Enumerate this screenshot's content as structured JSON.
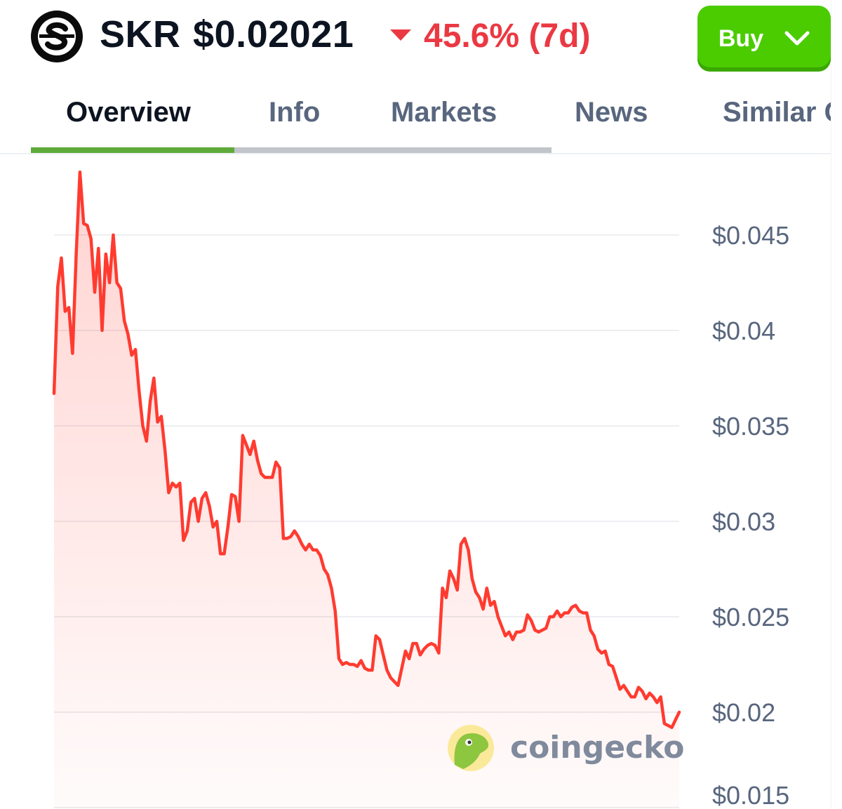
{
  "coin": {
    "symbol": "SKR",
    "price": "$0.02021",
    "change": "45.6% (7d)",
    "change_direction": "down",
    "logo_icon": "s-letter-logo-icon"
  },
  "buy_button": {
    "label": "Buy",
    "icon": "chevron-down-icon"
  },
  "tabs": [
    {
      "label": "Overview",
      "active": true
    },
    {
      "label": "Info",
      "active": false
    },
    {
      "label": "Markets",
      "active": false
    },
    {
      "label": "News",
      "active": false
    },
    {
      "label": "Similar Coins",
      "active": false
    }
  ],
  "colors": {
    "line": "#ff3b30",
    "up_green": "#4bcc00",
    "down_red": "#ea3943",
    "tab_active": "#5eab3b"
  },
  "watermark": "coingecko",
  "chart_data": {
    "type": "area",
    "period": "7d",
    "yticks": [
      "$0.015",
      "$0.02",
      "$0.025",
      "$0.03",
      "$0.035",
      "$0.04",
      "$0.045"
    ],
    "ytick_values": [
      0.015,
      0.02,
      0.025,
      0.03,
      0.035,
      0.04,
      0.045
    ],
    "ylim": [
      0.015,
      0.0486
    ],
    "grid": true,
    "series": [
      {
        "values": [
          0.0367,
          0.0423,
          0.0438,
          0.041,
          0.0412,
          0.0388,
          0.044,
          0.0483,
          0.0456,
          0.0455,
          0.0448,
          0.042,
          0.0443,
          0.04,
          0.044,
          0.0425,
          0.045,
          0.0425,
          0.0422,
          0.0405,
          0.0398,
          0.0387,
          0.039,
          0.0368,
          0.035,
          0.0342,
          0.0363,
          0.0375,
          0.0352,
          0.0355,
          0.0337,
          0.0315,
          0.032,
          0.0318,
          0.032,
          0.029,
          0.0295,
          0.031,
          0.0312,
          0.03,
          0.0312,
          0.0315,
          0.0308,
          0.0297,
          0.03,
          0.0283,
          0.0283,
          0.0297,
          0.0314,
          0.0313,
          0.03,
          0.0345,
          0.034,
          0.0335,
          0.0342,
          0.0332,
          0.0325,
          0.0323,
          0.0323,
          0.0323,
          0.0331,
          0.0328,
          0.0291,
          0.0291,
          0.0292,
          0.0295,
          0.0292,
          0.0288,
          0.0285,
          0.0288,
          0.0285,
          0.0285,
          0.0282,
          0.0275,
          0.0272,
          0.0265,
          0.0253,
          0.0228,
          0.0225,
          0.0226,
          0.0225,
          0.0225,
          0.0224,
          0.0227,
          0.0223,
          0.0222,
          0.0222,
          0.024,
          0.0238,
          0.023,
          0.0222,
          0.0218,
          0.0216,
          0.0214,
          0.0223,
          0.0232,
          0.0228,
          0.0236,
          0.0236,
          0.023,
          0.0233,
          0.0235,
          0.0236,
          0.0235,
          0.0231,
          0.0265,
          0.026,
          0.0274,
          0.027,
          0.0264,
          0.0288,
          0.0291,
          0.0285,
          0.027,
          0.0263,
          0.026,
          0.0254,
          0.0265,
          0.0256,
          0.0258,
          0.025,
          0.0245,
          0.024,
          0.0242,
          0.0238,
          0.0242,
          0.0242,
          0.0243,
          0.0251,
          0.0248,
          0.0243,
          0.0242,
          0.0243,
          0.0244,
          0.025,
          0.025,
          0.0253,
          0.025,
          0.0252,
          0.0252,
          0.0255,
          0.0256,
          0.0253,
          0.0252,
          0.0252,
          0.0243,
          0.024,
          0.0233,
          0.0231,
          0.0232,
          0.0225,
          0.0224,
          0.0218,
          0.0212,
          0.0214,
          0.0211,
          0.0208,
          0.0208,
          0.0213,
          0.0211,
          0.0207,
          0.021,
          0.0208,
          0.0205,
          0.0208,
          0.0194,
          0.0193,
          0.0192,
          0.0196,
          0.02
        ]
      }
    ]
  }
}
